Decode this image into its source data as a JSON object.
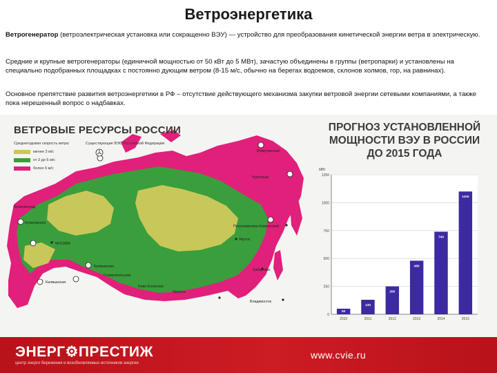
{
  "title": "Ветроэнергетика",
  "para1_bold": "Ветрогенератор",
  "para1_rest": " (ветроэлектрическая установка или сокращенно ВЭУ) — устройство для преобразования кинетической энергии ветра в электрическую.",
  "para2": "Средние и крупные ветрогенераторы (единичной мощностью от 50 кВт до 5 МВт), зачастую объединены в группы (ветропарки) и установлены на специально подобранных площадках с постоянно дующим ветром (8-15 м/с, обычно на берегах водоемов, склонов холмов, гор, на равнинах).",
  "para3": "Основное препятствие развития ветроэнергетики в РФ – отсутствие действующего механизма закупки ветровой энергии сетевыми компаниями, а также пока нерешенный вопрос о надбавках.",
  "map": {
    "title": "ВЕТРОВЫЕ РЕСУРСЫ РОССИИ",
    "legend_speed": "Среднегодовая скорость ветра:",
    "legend_existing": "Существующие ВЭС Российской Федерации",
    "legend_items": [
      {
        "label": "менее 3 м/с",
        "color": "#c8c85a"
      },
      {
        "label": "от 3 до 6 м/с",
        "color": "#3a9e3c"
      },
      {
        "label": "более 6 м/с",
        "color": "#e0207a"
      }
    ],
    "cities": [
      "Калининград",
      "Куликовская",
      "МОСКВА",
      "Калмыкская",
      "Ставропольская",
      "Калмыкская",
      "Ново-Еловская",
      "Беринговская",
      "Ягодинская",
      "Чукотская",
      "Камчатская",
      "Якутск",
      "Иркутск",
      "Хабаровск",
      "Владивосток",
      "Воркутинская",
      "Петропавловск-Камчатский",
      "Обская"
    ]
  },
  "chart": {
    "title_lines": [
      "ПРОГНОЗ УСТАНОВЛЕННОЙ",
      "МОЩНОСТИ ВЭУ В РОССИИ",
      "ДО 2015 ГОДА"
    ]
  },
  "chart_data": {
    "type": "bar",
    "ylabel": "МВт",
    "ylim": [
      0,
      1250
    ],
    "yticks": [
      0,
      250,
      500,
      750,
      1000,
      1250
    ],
    "categories": [
      "2010",
      "2011",
      "2012",
      "2013",
      "2014",
      "2015"
    ],
    "values": [
      50,
      130,
      250,
      480,
      740,
      1100
    ],
    "value_labels": [
      "50",
      "130",
      "250",
      "480",
      "740",
      "1100"
    ],
    "color": "#3b2aa0"
  },
  "footer": {
    "logo": "ЭНЕРГ⚙ПРЕСТИЖ",
    "logo_sub": "центр энерго бережения и возобновляемых источников энергии",
    "site": "www.cvie.ru"
  }
}
